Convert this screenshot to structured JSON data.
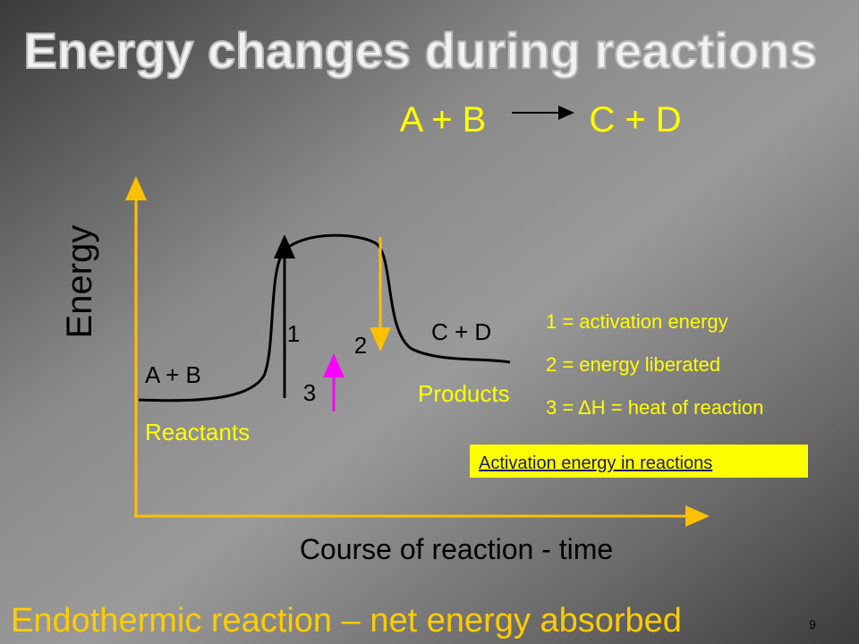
{
  "title": "Energy changes during reactions",
  "equation": {
    "left": "A + B",
    "right": "C + D"
  },
  "axes": {
    "y_label": "Energy",
    "x_label": "Course of reaction - time"
  },
  "diagram": {
    "arrow_1": "1",
    "arrow_2": "2",
    "arrow_3": "3",
    "reactants_formula": "A + B",
    "reactants_label": "Reactants",
    "products_formula": "C + D",
    "products_label": "Products"
  },
  "legend": [
    "1 = activation energy",
    "2 = energy liberated",
    "3 = ΔH = heat of reaction"
  ],
  "link": "Activation energy in reactions",
  "footer": "Endothermic reaction – net energy absorbed",
  "page_number": "9"
}
